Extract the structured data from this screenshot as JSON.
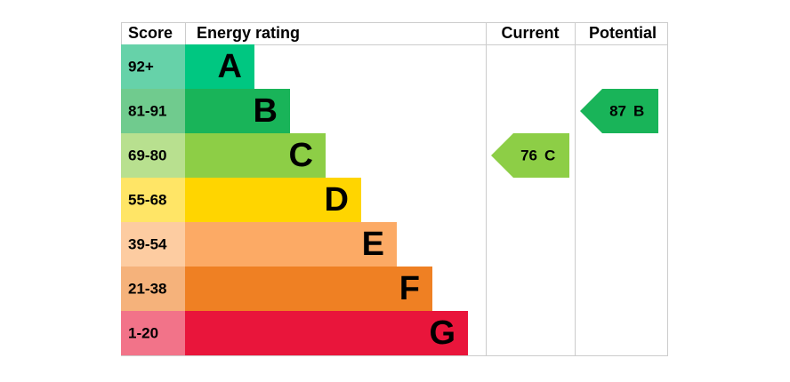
{
  "chart_data": {
    "type": "epc",
    "headers": {
      "score": "Score",
      "rating": "Energy rating",
      "current": "Current",
      "potential": "Potential"
    },
    "bands": [
      {
        "score": "92+",
        "letter": "A",
        "color": "#00c781",
        "score_color": "#66d2a9"
      },
      {
        "score": "81-91",
        "letter": "B",
        "color": "#19b459",
        "score_color": "#70cb8e"
      },
      {
        "score": "69-80",
        "letter": "C",
        "color": "#8dce46",
        "score_color": "#b8e08f"
      },
      {
        "score": "55-68",
        "letter": "D",
        "color": "#ffd500",
        "score_color": "#ffe566"
      },
      {
        "score": "39-54",
        "letter": "E",
        "color": "#fcaa65",
        "score_color": "#fdcca1"
      },
      {
        "score": "21-38",
        "letter": "F",
        "color": "#ef8023",
        "score_color": "#f5b27b"
      },
      {
        "score": "1-20",
        "letter": "G",
        "color": "#e9153b",
        "score_color": "#f27389"
      }
    ],
    "current": {
      "value": 76,
      "band": "C"
    },
    "potential": {
      "value": 87,
      "band": "B"
    }
  }
}
